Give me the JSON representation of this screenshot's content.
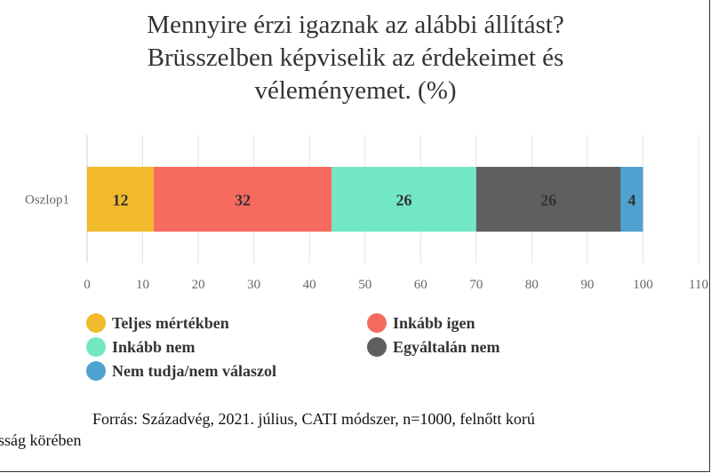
{
  "chart_data": {
    "type": "bar",
    "orientation": "horizontal",
    "stacked": true,
    "title_lines": [
      "Mennyire érzi igaznak az alábbi állítást?",
      "Brüsszelben képviselik az érdekeimet és",
      "véleményemet. (%)"
    ],
    "categories": [
      "Oszlop1"
    ],
    "series": [
      {
        "name": "Teljes mértékben",
        "values": [
          12
        ],
        "color": "#f2bb2b"
      },
      {
        "name": "Inkább igen",
        "values": [
          32
        ],
        "color": "#f76a60"
      },
      {
        "name": "Inkább nem",
        "values": [
          26
        ],
        "color": "#72e8c4"
      },
      {
        "name": "Egyáltalán nem",
        "values": [
          26
        ],
        "color": "#5f5f5f"
      },
      {
        "name": "Nem tudja/nem válaszol",
        "values": [
          4
        ],
        "color": "#4fa2d0"
      }
    ],
    "data_labels": [
      "12",
      "32",
      "26",
      "26",
      "4"
    ],
    "xlim": [
      0,
      110
    ],
    "xticks": [
      "0",
      "10",
      "20",
      "30",
      "40",
      "50",
      "60",
      "70",
      "80",
      "90",
      "100",
      "110"
    ],
    "grid": true,
    "legend_position": "bottom"
  },
  "source": {
    "line1": "Forrás: Századvég, 2021. július, CATI módszer, n=1000, felnőtt korú",
    "line2": "sság körében"
  }
}
